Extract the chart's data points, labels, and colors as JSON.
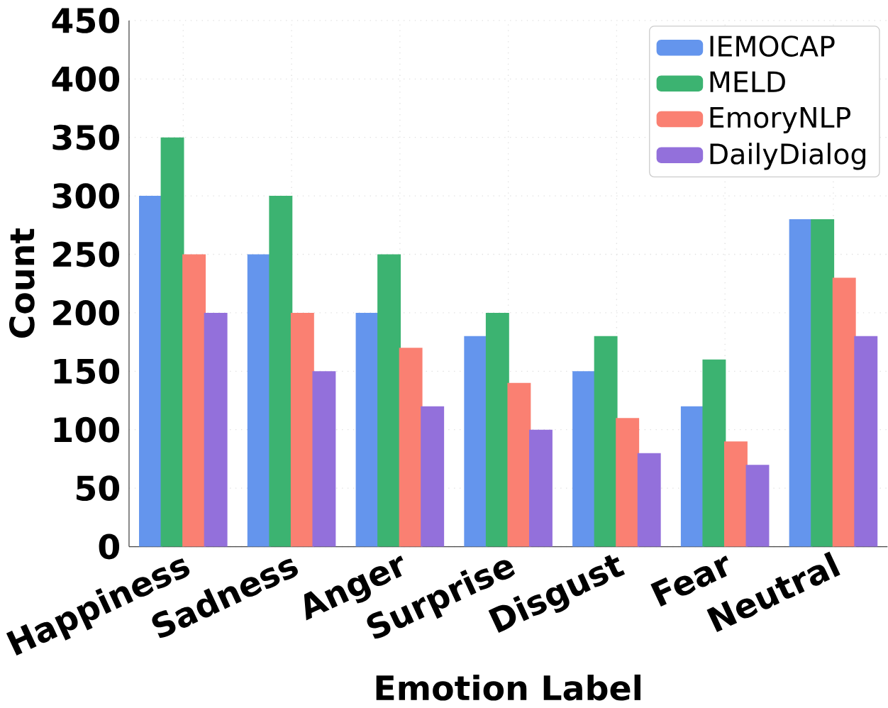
{
  "chart_data": {
    "type": "bar",
    "xlabel": "Emotion Label",
    "ylabel": "Count",
    "categories": [
      "Happiness",
      "Sadness",
      "Anger",
      "Surprise",
      "Disgust",
      "Fear",
      "Neutral"
    ],
    "series": [
      {
        "name": "IEMOCAP",
        "color": "#6495ed",
        "values": [
          300,
          250,
          200,
          180,
          150,
          120,
          280
        ]
      },
      {
        "name": "MELD",
        "color": "#3cb371",
        "values": [
          350,
          300,
          250,
          200,
          180,
          160,
          280
        ]
      },
      {
        "name": "EmoryNLP",
        "color": "#fa8072",
        "values": [
          250,
          200,
          170,
          140,
          110,
          90,
          230
        ]
      },
      {
        "name": "DailyDialog",
        "color": "#9370db",
        "values": [
          200,
          150,
          120,
          100,
          80,
          70,
          180
        ]
      }
    ],
    "ylim": [
      0,
      450
    ],
    "yticks": [
      0,
      50,
      100,
      150,
      200,
      250,
      300,
      350,
      400,
      450
    ],
    "grid": true,
    "legend": "top right"
  }
}
